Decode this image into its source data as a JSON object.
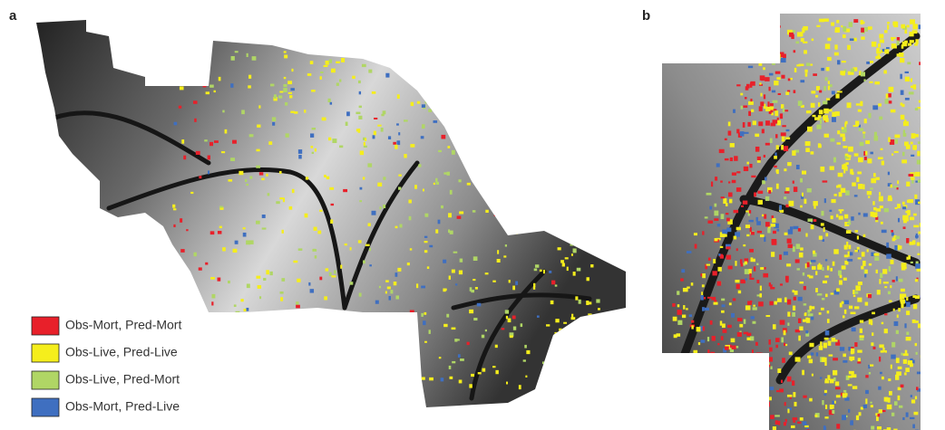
{
  "panels": [
    {
      "label": "a"
    },
    {
      "label": "b"
    }
  ],
  "legend": [
    {
      "label": "Obs-Mort, Pred-Mort",
      "color": "#e8202a"
    },
    {
      "label": "Obs-Live, Pred-Live",
      "color": "#f5ee1c"
    },
    {
      "label": "Obs-Live, Pred-Mort",
      "color": "#b0d665"
    },
    {
      "label": "Obs-Mort, Pred-Live",
      "color": "#3f6fc0"
    }
  ]
}
